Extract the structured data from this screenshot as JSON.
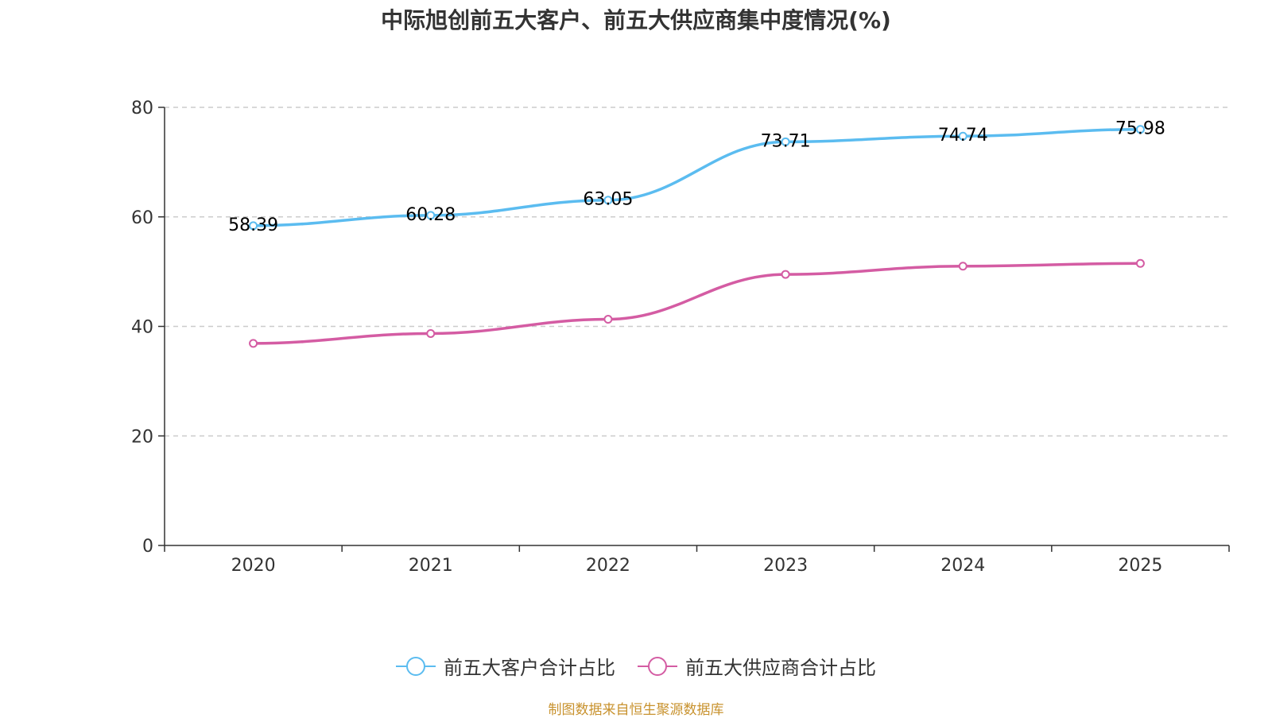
{
  "chart_data": {
    "type": "line",
    "title": "中际旭创前五大客户、前五大供应商集中度情况(%)",
    "categories": [
      "2020",
      "2021",
      "2022",
      "2023",
      "2024",
      "2025"
    ],
    "ylim": [
      0,
      80
    ],
    "yticks": [
      "0",
      "20",
      "40",
      "60",
      "80"
    ],
    "grid": true,
    "legend_position": "bottom",
    "series": [
      {
        "name": "前五大客户合计占比",
        "color": "#5bbcf0",
        "values": [
          58.39,
          60.28,
          63.05,
          73.71,
          74.74,
          75.98
        ],
        "labels": [
          "58.39",
          "60.28",
          "63.05",
          "73.71",
          "74.74",
          "75.98"
        ]
      },
      {
        "name": "前五大供应商合计占比",
        "color": "#d45ca3",
        "values": [
          36.9,
          38.7,
          41.3,
          49.5,
          51.0,
          51.5
        ]
      }
    ]
  },
  "source": "制图数据来自恒生聚源数据库"
}
